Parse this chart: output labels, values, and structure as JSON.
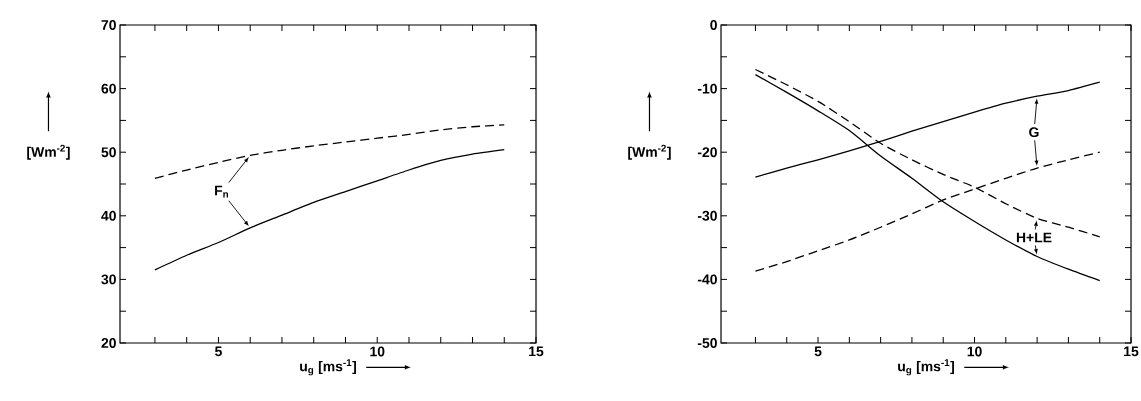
{
  "chart_data": [
    {
      "type": "line",
      "xlabel": "u$_{g}$ [ms$^{-1}$]",
      "ylabel": "[Wm$^{-2}$]",
      "xlim": [
        1.9,
        15
      ],
      "ylim": [
        20,
        70
      ],
      "xticks": [
        {
          "value": 3,
          "label": null
        },
        {
          "value": 4,
          "label": null
        },
        5,
        {
          "value": 6,
          "label": null
        },
        {
          "value": 7,
          "label": null
        },
        {
          "value": 8,
          "label": null
        },
        {
          "value": 9,
          "label": null
        },
        10,
        {
          "value": 11,
          "label": null
        },
        {
          "value": 12,
          "label": null
        },
        {
          "value": 13,
          "label": null
        },
        {
          "value": 14,
          "label": null
        },
        15
      ],
      "yticks": [
        20,
        {
          "value": 25,
          "label": null
        },
        30,
        {
          "value": 35,
          "label": null
        },
        40,
        {
          "value": 45,
          "label": null
        },
        50,
        {
          "value": 55,
          "label": null
        },
        60,
        {
          "value": 65,
          "label": null
        },
        70
      ],
      "x": [
        3,
        4,
        5,
        6,
        7,
        8,
        9,
        10,
        11,
        12,
        13,
        14
      ],
      "annotations": [
        "F$_{n}$"
      ],
      "series": [
        {
          "color": "#000000",
          "line_style": "dashed",
          "values": [
            45.9,
            47.2,
            48.4,
            49.5,
            50.3,
            51.0,
            51.6,
            52.2,
            52.8,
            53.5,
            54.0,
            54.3
          ]
        },
        {
          "color": "#000000",
          "line_style": "solid",
          "values": [
            31.5,
            33.8,
            35.8,
            38.1,
            40.1,
            42.1,
            43.8,
            45.5,
            47.2,
            48.7,
            49.7,
            50.4
          ]
        }
      ]
    },
    {
      "type": "line",
      "xlabel": "u$_{g}$ [ms$^{-1}$]",
      "ylabel": "[Wm$^{-2}$]",
      "xlim": [
        1.9,
        15
      ],
      "ylim": [
        -50,
        0
      ],
      "xticks": [
        {
          "value": 3,
          "label": null
        },
        {
          "value": 4,
          "label": null
        },
        5,
        {
          "value": 6,
          "label": null
        },
        {
          "value": 7,
          "label": null
        },
        {
          "value": 8,
          "label": null
        },
        {
          "value": 9,
          "label": null
        },
        10,
        {
          "value": 11,
          "label": null
        },
        {
          "value": 12,
          "label": null
        },
        {
          "value": 13,
          "label": null
        },
        {
          "value": 14,
          "label": null
        },
        15
      ],
      "yticks": [
        -50,
        {
          "value": -45,
          "label": null
        },
        -40,
        {
          "value": -35,
          "label": null
        },
        -30,
        {
          "value": -25,
          "label": null
        },
        -20,
        {
          "value": -15,
          "label": null
        },
        -10,
        {
          "value": -5,
          "label": null
        },
        0
      ],
      "x": [
        3,
        4,
        5,
        6,
        7,
        8,
        9,
        10,
        11,
        12,
        13,
        14
      ],
      "annotations": [
        "G",
        "H+LE"
      ],
      "series": [
        {
          "color": "#000000",
          "line_style": "solid",
          "values": [
            -23.9,
            -22.5,
            -21.2,
            -19.8,
            -18.3,
            -16.7,
            -15.2,
            -13.7,
            -12.3,
            -11.2,
            -10.3,
            -9.0
          ]
        },
        {
          "color": "#000000",
          "line_style": "dashed",
          "values": [
            -38.7,
            -37.2,
            -35.5,
            -33.8,
            -31.8,
            -29.7,
            -27.5,
            -25.8,
            -24.1,
            -22.5,
            -21.2,
            -20.0
          ]
        },
        {
          "color": "#000000",
          "line_style": "solid",
          "values": [
            -7.8,
            -10.6,
            -13.5,
            -16.6,
            -20.6,
            -24.1,
            -27.8,
            -30.9,
            -33.8,
            -36.4,
            -38.4,
            -40.2
          ]
        },
        {
          "color": "#000000",
          "line_style": "dashed",
          "values": [
            -7.0,
            -9.4,
            -12.0,
            -15.2,
            -18.6,
            -21.2,
            -23.5,
            -25.5,
            -28.1,
            -30.4,
            -31.8,
            -33.3
          ]
        }
      ]
    }
  ]
}
